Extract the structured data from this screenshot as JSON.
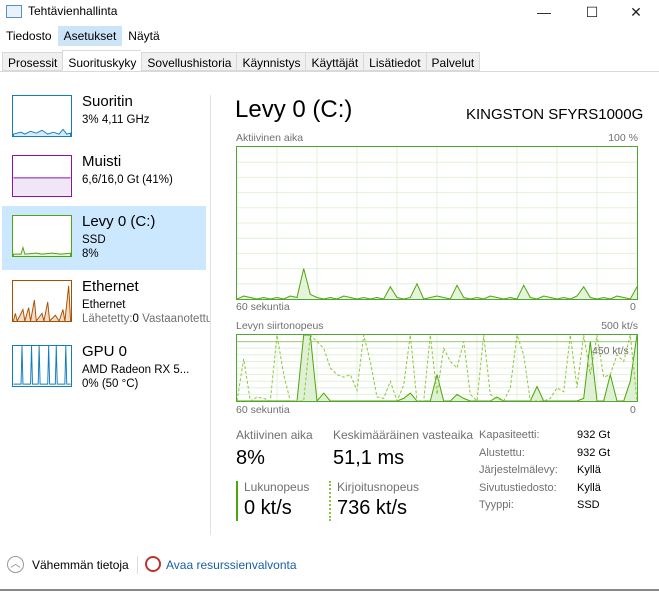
{
  "window": {
    "title": "Tehtävienhallinta",
    "controls": {
      "minimize": "—",
      "maximize": "☐",
      "close": "✕"
    }
  },
  "menu": [
    {
      "label": "Tiedosto"
    },
    {
      "label": "Asetukset"
    },
    {
      "label": "Näytä"
    }
  ],
  "tabs": [
    {
      "label": "Prosessit"
    },
    {
      "label": "Suorituskyky"
    },
    {
      "label": "Sovellushistoria"
    },
    {
      "label": "Käynnistys"
    },
    {
      "label": "Käyttäjät"
    },
    {
      "label": "Lisätiedot"
    },
    {
      "label": "Palvelut"
    }
  ],
  "sidebar": {
    "items": [
      {
        "name": "Suoritin",
        "sub1": "3% 4,11 GHz",
        "color": "#117dbb"
      },
      {
        "name": "Muisti",
        "sub1": "6,6/16,0 Gt (41%)",
        "color": "#8b12ae"
      },
      {
        "name": "Levy 0 (C:)",
        "sub1": "SSD",
        "sub2": "8%",
        "color": "#4da60c"
      },
      {
        "name": "Ethernet",
        "sub1": "Ethernet",
        "sub2_label": "Lähetetty:",
        "sub2_value": "0",
        "sub2_label2": "Vastaanotettu",
        "color": "#a74f01"
      },
      {
        "name": "GPU 0",
        "sub1": "AMD Radeon RX 5...",
        "sub2": "0%  (50 °C)",
        "color": "#117dbb"
      }
    ]
  },
  "main": {
    "title": "Levy 0 (C:)",
    "model": "KINGSTON SFYRS1000G",
    "stats": {
      "active_label": "Aktiivinen aika",
      "active_value": "8%",
      "resp_label": "Keskimääräinen vasteaika",
      "resp_value": "51,1 ms",
      "read_label": "Lukunopeus",
      "read_value": "0 kt/s",
      "write_label": "Kirjoitusnopeus",
      "write_value": "736 kt/s"
    },
    "props": [
      {
        "label": "Kapasiteetti:",
        "value": "932 Gt"
      },
      {
        "label": "Alustettu:",
        "value": "932 Gt"
      },
      {
        "label": "Järjestelmälevy:",
        "value": "Kyllä"
      },
      {
        "label": "Sivutustiedosto:",
        "value": "Kyllä"
      },
      {
        "label": "Tyyppi:",
        "value": "SSD"
      }
    ]
  },
  "chart_data": [
    {
      "type": "area",
      "title": "Aktiivinen aika",
      "ymax_label": "100 %",
      "xlabel_left": "60 sekuntia",
      "xlabel_right": "0",
      "ylim": [
        0,
        100
      ],
      "xlim": [
        60,
        0
      ],
      "grid": true,
      "color": "#4da60c",
      "values": [
        0,
        2,
        1,
        0,
        1,
        0,
        1,
        0,
        2,
        1,
        20,
        3,
        1,
        0,
        1,
        0,
        2,
        1,
        0,
        1,
        0,
        1,
        0,
        8,
        1,
        0,
        1,
        10,
        0,
        1,
        2,
        1,
        0,
        9,
        1,
        0,
        1,
        0,
        2,
        1,
        0,
        1,
        0,
        9,
        1,
        0,
        2,
        1,
        0,
        1,
        0,
        2,
        8,
        1,
        0,
        1,
        0,
        2,
        1,
        0,
        8
      ]
    },
    {
      "type": "line",
      "title": "Levyn siirtonopeus",
      "ymax_label": "500 kt/s",
      "ref_label": "450 kt/s",
      "xlabel_left": "60 sekuntia",
      "xlabel_right": "0",
      "ylim": [
        0,
        500
      ],
      "xlim": [
        60,
        0
      ],
      "grid": true,
      "color": "#4da60c",
      "series": [
        {
          "values": [
            0,
            0,
            0,
            0,
            0,
            0,
            0,
            0,
            0,
            0,
            500,
            500,
            0,
            60,
            0,
            0,
            0,
            0,
            0,
            0,
            0,
            0,
            0,
            0,
            0,
            20,
            60,
            0,
            0,
            0,
            200,
            0,
            0,
            50,
            20,
            0,
            0,
            0,
            0,
            30,
            0,
            0,
            0,
            0,
            0,
            110,
            0,
            0,
            0,
            0,
            0,
            0,
            20,
            450,
            0,
            0,
            200,
            0,
            0,
            150,
            500
          ]
        },
        {
          "values": [
            0,
            320,
            0,
            30,
            20,
            0,
            500,
            200,
            0,
            0,
            0,
            500,
            450,
            400,
            250,
            200,
            180,
            200,
            80,
            500,
            300,
            30,
            20,
            150,
            0,
            120,
            500,
            0,
            0,
            500,
            50,
            400,
            300,
            250,
            450,
            50,
            0,
            500,
            50,
            20,
            0,
            100,
            500,
            350,
            0,
            0,
            0,
            20,
            100,
            70,
            500,
            100,
            500,
            200,
            500,
            180,
            200,
            350,
            300,
            500,
            0
          ]
        }
      ]
    }
  ],
  "footer": {
    "less_details": "Vähemmän tietoja",
    "open_monitor": "Avaa resurssienvalvonta"
  }
}
